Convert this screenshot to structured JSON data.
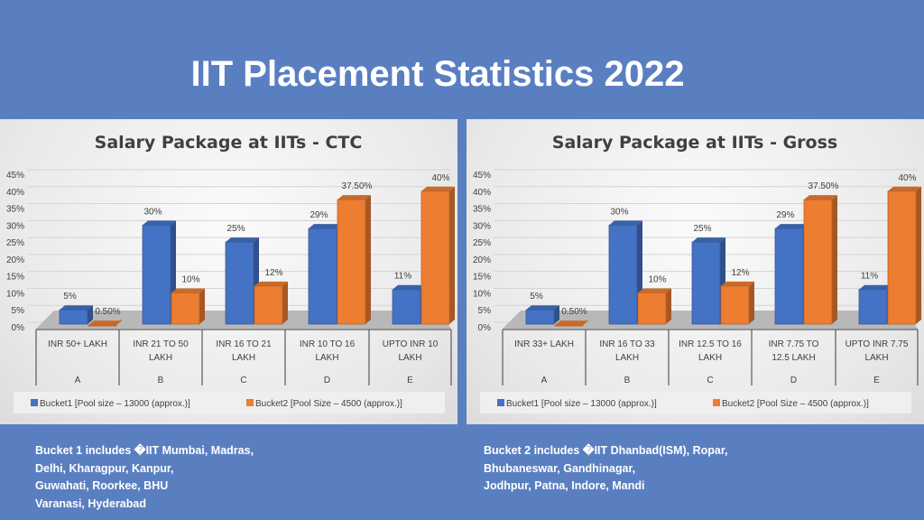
{
  "title": "IIT Placement Statistics 2022",
  "colors": {
    "background": "#5a7fc1",
    "bucket1": "#4472c4",
    "bucket2": "#ed7d31"
  },
  "chart_data": [
    {
      "type": "bar",
      "title": "Salary Package at IITs - CTC",
      "categories": [
        "INR 50+ LAKH",
        "INR 21 TO 50 LAKH",
        "INR 16 TO 21 LAKH",
        "INR 10 TO 16 LAKH",
        "UPTO INR 10 LAKH"
      ],
      "group_labels": [
        "A",
        "B",
        "C",
        "D",
        "E"
      ],
      "yticks": [
        "0%",
        "5%",
        "10%",
        "15%",
        "20%",
        "25%",
        "30%",
        "35%",
        "40%",
        "45%"
      ],
      "ylim": [
        0,
        45
      ],
      "grid": true,
      "legend": "bottom",
      "series": [
        {
          "name": "Bucket1 [Pool size – 13000 (approx.)]",
          "values": [
            5,
            30,
            25,
            29,
            11
          ],
          "labels": [
            "5%",
            "30%",
            "25%",
            "29%",
            "11%"
          ]
        },
        {
          "name": "Bucket2 [Pool Size – 4500 (approx.)]",
          "values": [
            0.5,
            10,
            12,
            37.5,
            40
          ],
          "labels": [
            "0.50%",
            "10%",
            "12%",
            "37.50%",
            "40%"
          ]
        }
      ]
    },
    {
      "type": "bar",
      "title": "Salary Package at IITs - Gross",
      "categories": [
        "INR 33+ LAKH",
        "INR 16 TO 33 LAKH",
        "INR 12.5 TO 16 LAKH",
        "INR 7.75 TO 12.5 LAKH",
        "UPTO INR 7.75 LAKH"
      ],
      "group_labels": [
        "A",
        "B",
        "C",
        "D",
        "E"
      ],
      "yticks": [
        "0%",
        "5%",
        "10%",
        "15%",
        "20%",
        "25%",
        "30%",
        "35%",
        "40%",
        "45%"
      ],
      "ylim": [
        0,
        45
      ],
      "grid": true,
      "legend": "bottom",
      "series": [
        {
          "name": "Bucket1 [Pool size – 13000 (approx.)]",
          "values": [
            5,
            30,
            25,
            29,
            11
          ],
          "labels": [
            "5%",
            "30%",
            "25%",
            "29%",
            "11%"
          ]
        },
        {
          "name": "Bucket2 [Pool Size – 4500 (approx.)]",
          "values": [
            0.5,
            10,
            12,
            37.5,
            40
          ],
          "labels": [
            "0.50%",
            "10%",
            "12%",
            "37.50%",
            "40%"
          ]
        }
      ]
    }
  ],
  "notes": [
    [
      "Bucket 1 includes �IIT Mumbai, Madras,",
      "Delhi, Kharagpur, Kanpur,",
      "Guwahati, Roorkee, BHU",
      "Varanasi, Hyderabad"
    ],
    [
      "Bucket 2 includes �IIT Dhanbad(ISM), Ropar,",
      "Bhubaneswar, Gandhinagar,",
      "Jodhpur, Patna, Indore, Mandi"
    ]
  ]
}
